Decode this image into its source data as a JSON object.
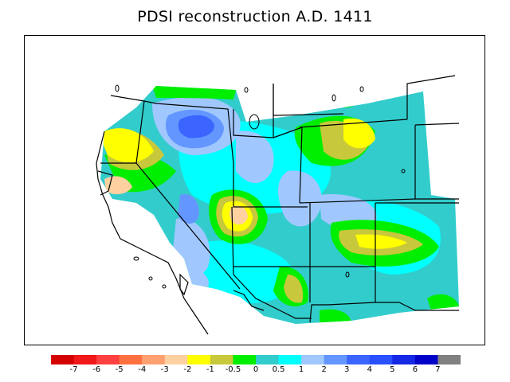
{
  "title": "PDSI reconstruction A.D. 1411",
  "legend": {
    "colors": [
      "#d40000",
      "#f01818",
      "#ff4040",
      "#ff7040",
      "#ffa070",
      "#ffd0a0",
      "#ffff00",
      "#c8c83c",
      "#00ee00",
      "#33cccc",
      "#00ffff",
      "#a0c8ff",
      "#6496ff",
      "#3c64ff",
      "#2850ff",
      "#1428e6",
      "#0000c8",
      "#808080"
    ],
    "labels": [
      "-7",
      "-6",
      "-5",
      "-4",
      "-3",
      "-2",
      "-1",
      "-0.5",
      "0",
      "0.5",
      "1",
      "2",
      "3",
      "4",
      "5",
      "6",
      "7"
    ]
  },
  "map": {
    "region": "Western United States",
    "variable": "PDSI",
    "year": "A.D. 1411",
    "fill_colors": {
      "background": "#33cccc",
      "dry_yellow": "#ffff00",
      "dry_olive": "#c8c83c",
      "neutral_green": "#00ee00",
      "wet_cyan": "#00ffff",
      "wet_lightblue": "#a0c8ff",
      "wet_blue": "#6496ff",
      "wet_deep": "#3c64ff",
      "dry_peach": "#ffd0a0"
    }
  }
}
